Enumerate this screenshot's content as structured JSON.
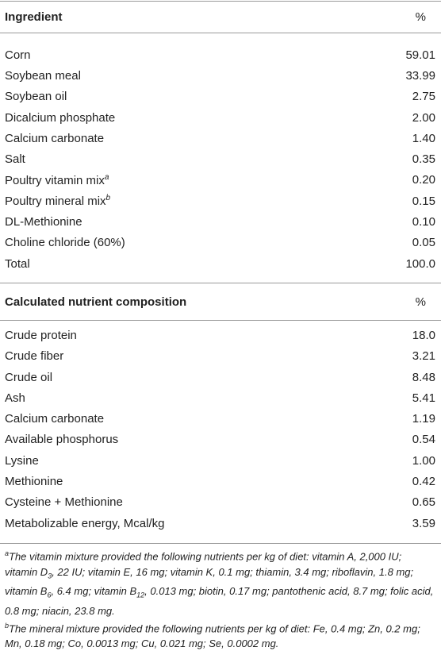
{
  "sections": [
    {
      "header": {
        "name": "Ingredient",
        "unit": "%"
      },
      "rows": [
        {
          "name": "Corn",
          "value": "59.01"
        },
        {
          "name": "Soybean meal",
          "value": "33.99"
        },
        {
          "name": "Soybean oil",
          "value": "2.75"
        },
        {
          "name": "Dicalcium phosphate",
          "value": "2.00"
        },
        {
          "name": "Calcium carbonate",
          "value": "1.40"
        },
        {
          "name": "Salt",
          "value": "0.35"
        },
        {
          "name": "Poultry vitamin mix",
          "note": "a",
          "value": "0.20"
        },
        {
          "name": "Poultry mineral mix",
          "note": "b",
          "value": "0.15"
        },
        {
          "name": "DL-Methionine",
          "value": "0.10"
        },
        {
          "name": "Choline chloride (60%)",
          "value": "0.05"
        },
        {
          "name": "Total",
          "value": "100.0"
        }
      ]
    },
    {
      "header": {
        "name": "Calculated nutrient composition",
        "unit": "%"
      },
      "rows": [
        {
          "name": "Crude protein",
          "value": "18.0"
        },
        {
          "name": "Crude fiber",
          "value": "3.21"
        },
        {
          "name": "Crude oil",
          "value": "8.48"
        },
        {
          "name": "Ash",
          "value": "5.41"
        },
        {
          "name": "Calcium carbonate",
          "value": "1.19"
        },
        {
          "name": "Available phosphorus",
          "value": "0.54"
        },
        {
          "name": "Lysine",
          "value": "1.00"
        },
        {
          "name": "Methionine",
          "value": "0.42"
        },
        {
          "name": "Cysteine + Methionine",
          "value": "0.65"
        },
        {
          "name": "Metabolizable energy, Mcal/kg",
          "value": "3.59"
        }
      ]
    }
  ],
  "footnotes": [
    {
      "marker": "a",
      "parts": [
        "The vitamin mixture provided the following nutrients per kg of diet: vitamin A, 2,000 IU; vitamin D",
        "3",
        ", 22 IU; vitamin E, 16 mg; vitamin K, 0.1 mg; thiamin, 3.4 mg; riboflavin, 1.8 mg; vitamin B",
        "6",
        ", 6.4 mg; vitamin B",
        "12",
        ", 0.013 mg; biotin, 0.17 mg; pantothenic acid, 8.7 mg; folic acid, 0.8 mg; niacin, 23.8 mg."
      ]
    },
    {
      "marker": "b",
      "parts": [
        "The mineral mixture provided the following nutrients per kg of diet: Fe, 0.4 mg; Zn, 0.2 mg; Mn, 0.18 mg; Co, 0.0013 mg; Cu, 0.021 mg; Se, 0.0002 mg."
      ]
    }
  ]
}
